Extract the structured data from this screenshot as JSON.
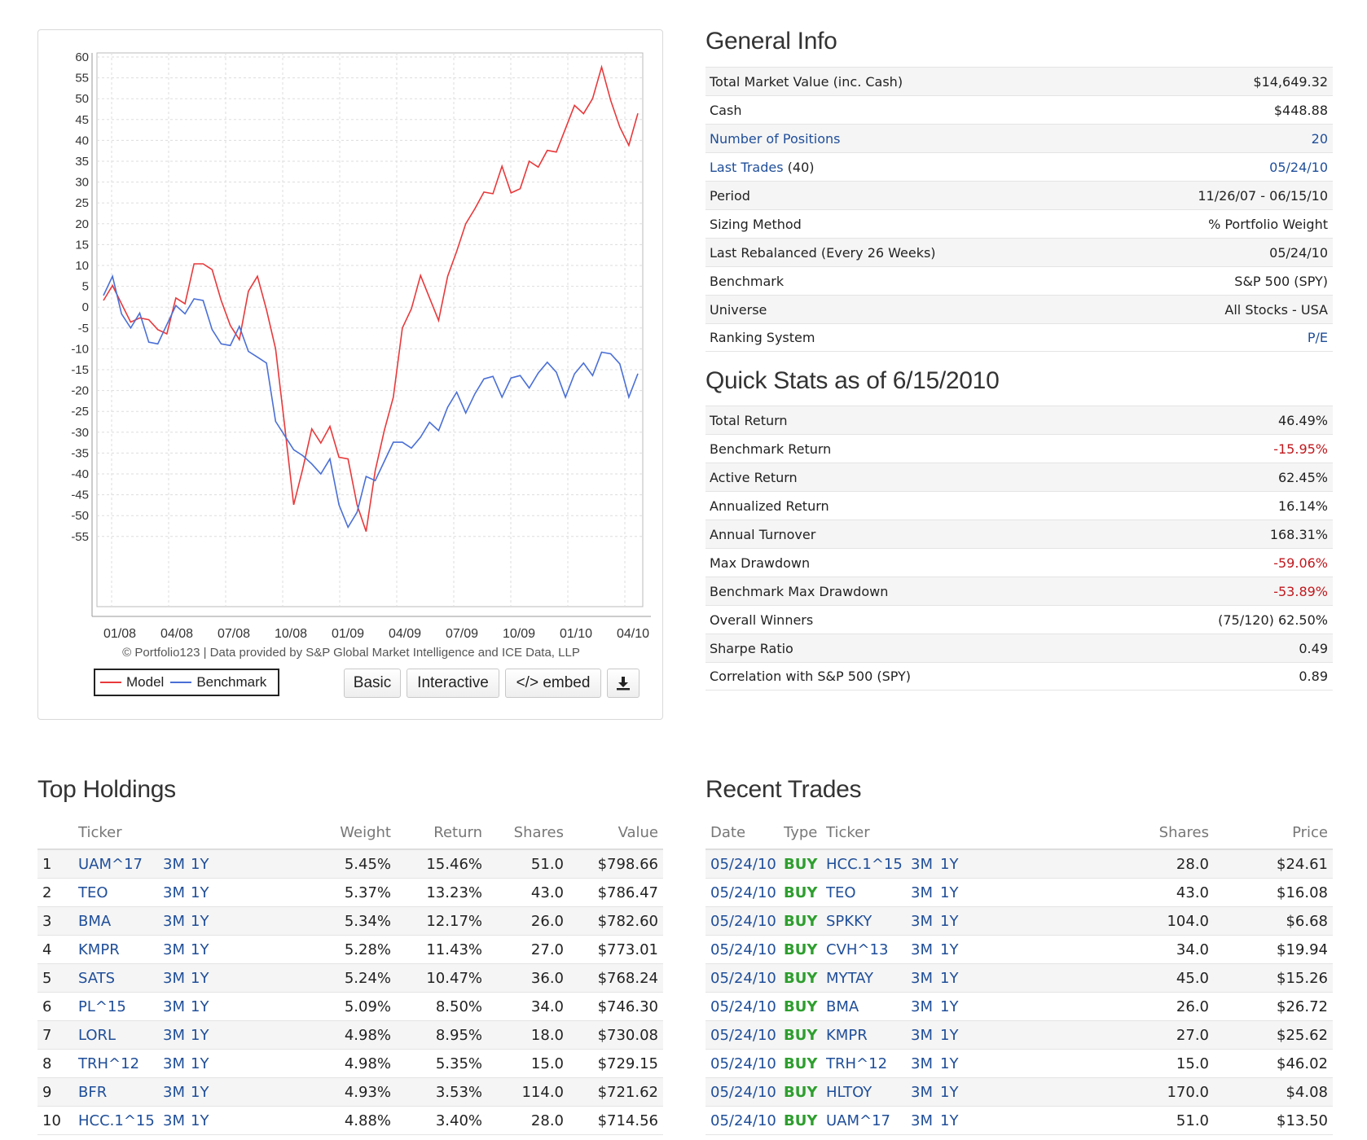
{
  "chart": {
    "credit": "© Portfolio123 | Data provided by S&P Global Market Intelligence and ICE Data, LLP",
    "legend": [
      {
        "label": "Model",
        "color": "#e8393b"
      },
      {
        "label": "Benchmark",
        "color": "#4a6fd6"
      }
    ],
    "buttons": {
      "basic": "Basic",
      "interactive": "Interactive",
      "embed": "</> embed"
    },
    "download_icon": "download-icon"
  },
  "chart_data": {
    "type": "line",
    "x_tick_labels": [
      "01/08",
      "04/08",
      "07/08",
      "10/08",
      "01/09",
      "04/09",
      "07/09",
      "10/09",
      "01/10",
      "04/10"
    ],
    "y_tick_labels": [
      "60",
      "55",
      "50",
      "45",
      "40",
      "35",
      "30",
      "25",
      "20",
      "15",
      "10",
      "5",
      "0",
      "-5",
      "-10",
      "-15",
      "-20",
      "-25",
      "-30",
      "-35",
      "-40",
      "-45",
      "-50",
      "-55"
    ],
    "ylim": [
      -60,
      60
    ],
    "grid": true,
    "x": [
      "11/26/07",
      "12/15/07",
      "01/08",
      "01/20/08",
      "02/08",
      "03/08",
      "03/20/08",
      "04/08",
      "05/08",
      "05/20/08",
      "06/08",
      "06/20/08",
      "07/08",
      "07/20/08",
      "08/08",
      "08/20/08",
      "09/08",
      "09/20/08",
      "10/08",
      "10/20/08",
      "11/08",
      "11/20/08",
      "12/08",
      "12/20/08",
      "01/09",
      "01/20/09",
      "02/09",
      "02/20/09",
      "03/09",
      "03/20/09",
      "04/09",
      "04/20/09",
      "05/09",
      "05/20/09",
      "06/09",
      "06/20/09",
      "07/09",
      "07/20/09",
      "08/09",
      "08/20/09",
      "09/09",
      "09/20/09",
      "10/09",
      "10/20/09",
      "11/09",
      "11/20/09",
      "12/09",
      "12/20/09",
      "01/10",
      "01/20/10",
      "02/10",
      "02/20/10",
      "03/10",
      "03/20/10",
      "04/10",
      "04/20/10",
      "05/10",
      "05/20/10",
      "06/01/10",
      "06/15/10"
    ],
    "series": [
      {
        "name": "Model",
        "color": "#e8393b",
        "values": [
          4,
          6,
          0,
          -6,
          -1,
          -3,
          -7,
          -4,
          3,
          0,
          8,
          12,
          9,
          0,
          -2,
          -7,
          3,
          5,
          1,
          -10,
          -30,
          -45,
          -38,
          -30,
          -35,
          -27,
          -36,
          -38,
          -45,
          -53,
          -40,
          -32,
          -20,
          -5,
          -2,
          10,
          3,
          -4,
          5,
          15,
          20,
          22,
          30,
          28,
          33,
          25,
          30,
          35,
          32,
          40,
          38,
          42,
          46,
          48,
          50,
          56,
          52,
          44,
          38,
          46.49
        ]
      },
      {
        "name": "Benchmark",
        "color": "#4a6fd6",
        "values": [
          2,
          5,
          0,
          -5,
          -3,
          -6,
          -8,
          -5,
          -2,
          0,
          2,
          0,
          -3,
          -8,
          -10,
          -7,
          -9,
          -12,
          -15,
          -25,
          -30,
          -35,
          -38,
          -36,
          -40,
          -38,
          -45,
          -52,
          -50,
          -43,
          -40,
          -37,
          -34,
          -30,
          -33,
          -32,
          -30,
          -28,
          -24,
          -22,
          -23,
          -20,
          -18,
          -19,
          -20,
          -17,
          -18,
          -17,
          -15,
          -14,
          -18,
          -20,
          -16,
          -15,
          -14,
          -10,
          -12,
          -16,
          -20,
          -15.95
        ]
      }
    ]
  },
  "general_info": {
    "title": "General Info",
    "rows": [
      {
        "label": "Total Market Value (inc. Cash)",
        "value": "$14,649.32"
      },
      {
        "label": "Cash",
        "value": "$448.88"
      },
      {
        "label": "Number of Positions",
        "value": "20",
        "link": true
      },
      {
        "label": "Last Trades",
        "label_suffix": " (40)",
        "value": "05/24/10",
        "link": true
      },
      {
        "label": "Period",
        "value": "11/26/07 - 06/15/10"
      },
      {
        "label": "Sizing Method",
        "value": "% Portfolio Weight"
      },
      {
        "label": "Last Rebalanced (Every 26 Weeks)",
        "value": "05/24/10"
      },
      {
        "label": "Benchmark",
        "value": "S&P 500 (SPY)"
      },
      {
        "label": "Universe",
        "value": "All Stocks - USA"
      },
      {
        "label": "Ranking System",
        "value": "P/E",
        "value_link": true
      }
    ]
  },
  "quick_stats": {
    "title": "Quick Stats as of 6/15/2010",
    "rows": [
      {
        "label": "Total Return",
        "value": "46.49%"
      },
      {
        "label": "Benchmark Return",
        "value": "-15.95%",
        "negative": true
      },
      {
        "label": "Active Return",
        "value": "62.45%"
      },
      {
        "label": "Annualized Return",
        "value": "16.14%"
      },
      {
        "label": "Annual Turnover",
        "value": "168.31%"
      },
      {
        "label": "Max Drawdown",
        "value": "-59.06%",
        "negative": true
      },
      {
        "label": "Benchmark Max Drawdown",
        "value": "-53.89%",
        "negative": true
      },
      {
        "label": "Overall Winners",
        "value": "(75/120) 62.50%"
      },
      {
        "label": "Sharpe Ratio",
        "value": "0.49"
      },
      {
        "label": "Correlation with S&P 500 (SPY)",
        "value": "0.89"
      }
    ]
  },
  "top_holdings": {
    "title": "Top Holdings",
    "columns": [
      "Ticker",
      "Weight",
      "Return",
      "Shares",
      "Value"
    ],
    "link_3m": "3M",
    "link_1y": "1Y",
    "rows": [
      {
        "n": "1",
        "ticker": "UAM^17",
        "weight": "5.45%",
        "ret": "15.46%",
        "shares": "51.0",
        "value": "$798.66"
      },
      {
        "n": "2",
        "ticker": "TEO",
        "weight": "5.37%",
        "ret": "13.23%",
        "shares": "43.0",
        "value": "$786.47"
      },
      {
        "n": "3",
        "ticker": "BMA",
        "weight": "5.34%",
        "ret": "12.17%",
        "shares": "26.0",
        "value": "$782.60"
      },
      {
        "n": "4",
        "ticker": "KMPR",
        "weight": "5.28%",
        "ret": "11.43%",
        "shares": "27.0",
        "value": "$773.01"
      },
      {
        "n": "5",
        "ticker": "SATS",
        "weight": "5.24%",
        "ret": "10.47%",
        "shares": "36.0",
        "value": "$768.24"
      },
      {
        "n": "6",
        "ticker": "PL^15",
        "weight": "5.09%",
        "ret": "8.50%",
        "shares": "34.0",
        "value": "$746.30"
      },
      {
        "n": "7",
        "ticker": "LORL",
        "weight": "4.98%",
        "ret": "8.95%",
        "shares": "18.0",
        "value": "$730.08"
      },
      {
        "n": "8",
        "ticker": "TRH^12",
        "weight": "4.98%",
        "ret": "5.35%",
        "shares": "15.0",
        "value": "$729.15"
      },
      {
        "n": "9",
        "ticker": "BFR",
        "weight": "4.93%",
        "ret": "3.53%",
        "shares": "114.0",
        "value": "$721.62"
      },
      {
        "n": "10",
        "ticker": "HCC.1^15",
        "weight": "4.88%",
        "ret": "3.40%",
        "shares": "28.0",
        "value": "$714.56"
      }
    ]
  },
  "recent_trades": {
    "title": "Recent Trades",
    "columns": [
      "Date",
      "Type",
      "Ticker",
      "Shares",
      "Price"
    ],
    "link_3m": "3M",
    "link_1y": "1Y",
    "rows": [
      {
        "date": "05/24/10",
        "type": "BUY",
        "ticker": "HCC.1^15",
        "shares": "28.0",
        "price": "$24.61"
      },
      {
        "date": "05/24/10",
        "type": "BUY",
        "ticker": "TEO",
        "shares": "43.0",
        "price": "$16.08"
      },
      {
        "date": "05/24/10",
        "type": "BUY",
        "ticker": "SPKKY",
        "shares": "104.0",
        "price": "$6.68"
      },
      {
        "date": "05/24/10",
        "type": "BUY",
        "ticker": "CVH^13",
        "shares": "34.0",
        "price": "$19.94"
      },
      {
        "date": "05/24/10",
        "type": "BUY",
        "ticker": "MYTAY",
        "shares": "45.0",
        "price": "$15.26"
      },
      {
        "date": "05/24/10",
        "type": "BUY",
        "ticker": "BMA",
        "shares": "26.0",
        "price": "$26.72"
      },
      {
        "date": "05/24/10",
        "type": "BUY",
        "ticker": "KMPR",
        "shares": "27.0",
        "price": "$25.62"
      },
      {
        "date": "05/24/10",
        "type": "BUY",
        "ticker": "TRH^12",
        "shares": "15.0",
        "price": "$46.02"
      },
      {
        "date": "05/24/10",
        "type": "BUY",
        "ticker": "HLTOY",
        "shares": "170.0",
        "price": "$4.08"
      },
      {
        "date": "05/24/10",
        "type": "BUY",
        "ticker": "UAM^17",
        "shares": "51.0",
        "price": "$13.50"
      }
    ]
  }
}
